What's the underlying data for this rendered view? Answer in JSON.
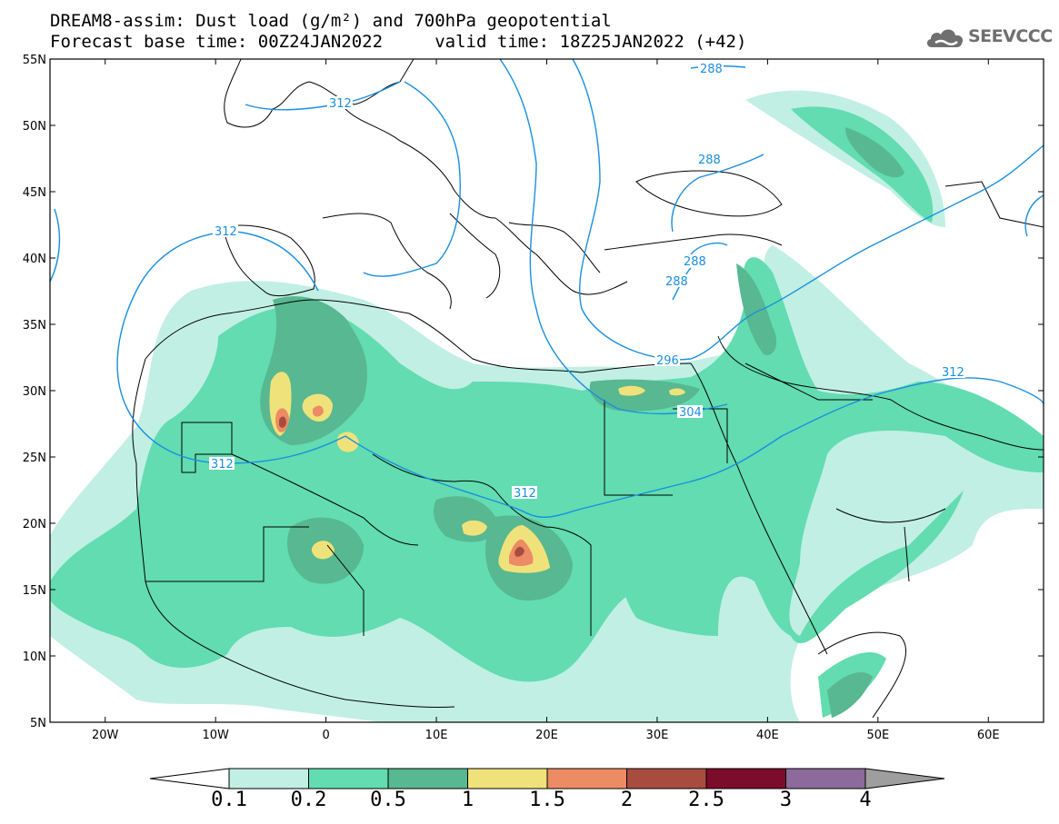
{
  "title": {
    "line1": "DREAM8-assim: Dust load (g/m²) and 700hPa geopotential",
    "line2": "Forecast base time: 00Z24JAN2022     valid time: 18Z25JAN2022 (+42)"
  },
  "logo": {
    "text": "SEEVCCC",
    "icon": "cloud-logo-icon"
  },
  "map": {
    "lat_labels": [
      "55N",
      "50N",
      "45N",
      "40N",
      "35N",
      "30N",
      "25N",
      "20N",
      "15N",
      "10N",
      "5N"
    ],
    "lon_labels": [
      "20W",
      "10W",
      "0",
      "10E",
      "20E",
      "30E",
      "40E",
      "50E",
      "60E"
    ],
    "lat_range": [
      5,
      55
    ],
    "lon_range": [
      -25,
      65
    ]
  },
  "contour_labels": [
    "288",
    "312",
    "288",
    "312",
    "288",
    "288",
    "296",
    "312",
    "304",
    "312",
    "312"
  ],
  "colorbar": {
    "labels": [
      "0.1",
      "0.2",
      "0.5",
      "1",
      "1.5",
      "2",
      "2.5",
      "3",
      "4"
    ],
    "colors": [
      "#c1efe4",
      "#62dcb0",
      "#57b891",
      "#f0e27a",
      "#ec8c64",
      "#a84c40",
      "#7b0c2a",
      "#8c6a9c",
      "#9e9e9e"
    ]
  }
}
